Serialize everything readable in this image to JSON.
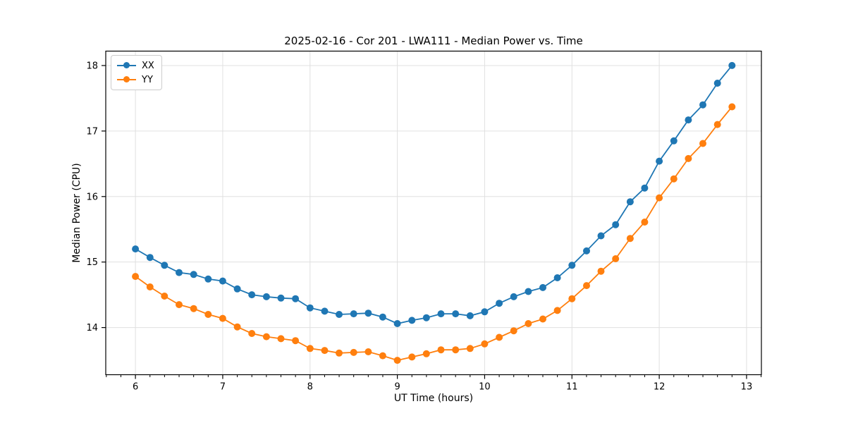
{
  "title": "2025-02-16 - Cor 201 - LWA111 - Median Power vs. Time",
  "colors": {
    "series_xx": "#1f77b4",
    "series_yy": "#ff7f0e",
    "grid": "#e0e0e0",
    "spine": "#000000",
    "text": "#000000",
    "legend_border": "#cccccc"
  },
  "chart_data": {
    "type": "line",
    "title": "2025-02-16 - Cor 201 - LWA111 - Median Power vs. Time",
    "xlabel": "UT Time (hours)",
    "ylabel": "Median Power (CPU)",
    "xlim": [
      5.66,
      13.17
    ],
    "ylim": [
      13.28,
      18.22
    ],
    "x_ticks": [
      6,
      7,
      8,
      9,
      10,
      11,
      12,
      13
    ],
    "x_tick_labels": [
      "6",
      "7",
      "8",
      "9",
      "10",
      "11",
      "12",
      "13"
    ],
    "y_ticks": [
      14,
      15,
      16,
      17,
      18
    ],
    "y_tick_labels": [
      "14",
      "15",
      "16",
      "17",
      "18"
    ],
    "x_minor_tick_step": 0.166667,
    "grid": true,
    "legend_position": "upper-left",
    "marker": "circle",
    "x": [
      6.0,
      6.167,
      6.333,
      6.5,
      6.667,
      6.833,
      7.0,
      7.167,
      7.333,
      7.5,
      7.667,
      7.833,
      8.0,
      8.167,
      8.333,
      8.5,
      8.667,
      8.833,
      9.0,
      9.167,
      9.333,
      9.5,
      9.667,
      9.833,
      10.0,
      10.167,
      10.333,
      10.5,
      10.667,
      10.833,
      11.0,
      11.167,
      11.333,
      11.5,
      11.667,
      11.833,
      12.0,
      12.167,
      12.333,
      12.5,
      12.667,
      12.833
    ],
    "series": [
      {
        "name": "XX",
        "color": "#1f77b4",
        "values": [
          15.2,
          15.07,
          14.95,
          14.84,
          14.81,
          14.74,
          14.71,
          14.59,
          14.5,
          14.47,
          14.45,
          14.44,
          14.3,
          14.25,
          14.2,
          14.21,
          14.22,
          14.16,
          14.06,
          14.11,
          14.15,
          14.21,
          14.21,
          14.18,
          14.24,
          14.37,
          14.47,
          14.55,
          14.61,
          14.76,
          14.95,
          15.17,
          15.4,
          15.57,
          15.92,
          16.13,
          16.54,
          16.85,
          17.17,
          17.4,
          17.73,
          18.0
        ]
      },
      {
        "name": "YY",
        "color": "#ff7f0e",
        "values": [
          14.78,
          14.62,
          14.48,
          14.35,
          14.29,
          14.2,
          14.14,
          14.01,
          13.91,
          13.86,
          13.83,
          13.8,
          13.68,
          13.65,
          13.61,
          13.62,
          13.63,
          13.57,
          13.5,
          13.55,
          13.6,
          13.66,
          13.66,
          13.68,
          13.75,
          13.85,
          13.95,
          14.06,
          14.13,
          14.26,
          14.44,
          14.64,
          14.86,
          15.05,
          15.36,
          15.61,
          15.98,
          16.27,
          16.58,
          16.81,
          17.1,
          17.37
        ]
      }
    ]
  }
}
